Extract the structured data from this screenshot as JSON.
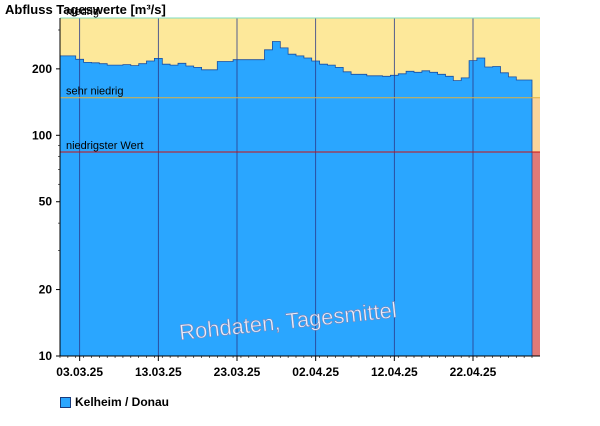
{
  "chart_data": {
    "type": "area",
    "title": "Abfluss Tageswerte [m³/s]",
    "y_scale": "log",
    "ylim": [
      10,
      340
    ],
    "y_ticks": [
      10,
      20,
      50,
      100,
      200
    ],
    "x_ticks": [
      "03.03.25",
      "13.03.25",
      "23.03.25",
      "02.04.25",
      "12.04.25",
      "22.04.25"
    ],
    "dates": [
      "01.03.25",
      "02.03.25",
      "03.03.25",
      "04.03.25",
      "05.03.25",
      "06.03.25",
      "07.03.25",
      "08.03.25",
      "09.03.25",
      "10.03.25",
      "11.03.25",
      "12.03.25",
      "13.03.25",
      "14.03.25",
      "15.03.25",
      "16.03.25",
      "17.03.25",
      "18.03.25",
      "19.03.25",
      "20.03.25",
      "21.03.25",
      "22.03.25",
      "23.03.25",
      "24.03.25",
      "25.03.25",
      "26.03.25",
      "27.03.25",
      "28.03.25",
      "29.03.25",
      "30.03.25",
      "31.03.25",
      "01.04.25",
      "02.04.25",
      "03.04.25",
      "04.04.25",
      "05.04.25",
      "06.04.25",
      "07.04.25",
      "08.04.25",
      "09.04.25",
      "10.04.25",
      "11.04.25",
      "12.04.25",
      "13.04.25",
      "14.04.25",
      "15.04.25",
      "16.04.25",
      "17.04.25",
      "18.04.25",
      "19.04.25",
      "20.04.25",
      "21.04.25",
      "22.04.25",
      "23.04.25",
      "24.04.25",
      "25.04.25",
      "26.04.25",
      "27.04.25",
      "28.04.25",
      "29.04.25"
    ],
    "series": [
      {
        "name": "Kelheim / Donau",
        "color": "#2aa6ff",
        "values": [
          229,
          229,
          221,
          214,
          213,
          211,
          208,
          208,
          209,
          207,
          211,
          217,
          223,
          210,
          208,
          212,
          206,
          203,
          198,
          198,
          216,
          216,
          220,
          220,
          220,
          220,
          244,
          266,
          249,
          233,
          229,
          224,
          217,
          210,
          208,
          203,
          194,
          189,
          189,
          186,
          186,
          185,
          187,
          190,
          195,
          193,
          196,
          193,
          189,
          185,
          177,
          182,
          218,
          224,
          204,
          205,
          192,
          184,
          178,
          178
        ]
      }
    ],
    "thresholds": [
      {
        "label": "niedrig",
        "value": 340,
        "color": "#7fdcc0"
      },
      {
        "label": "sehr niedrig",
        "value": 148,
        "color": "#e0b040"
      },
      {
        "label": "niedrigster Wert",
        "value": 84,
        "color": "#cc1010"
      }
    ],
    "bands": {
      "niedrig": "#fde89a",
      "sehr_niedrig": "#fcd49b",
      "min_zone": "#e07a78"
    },
    "grid_color": "#2a3a8a",
    "watermark": "Rohdaten, Tagesmittel"
  },
  "legend": {
    "label": "Kelheim / Donau",
    "color": "#2aa6ff"
  }
}
